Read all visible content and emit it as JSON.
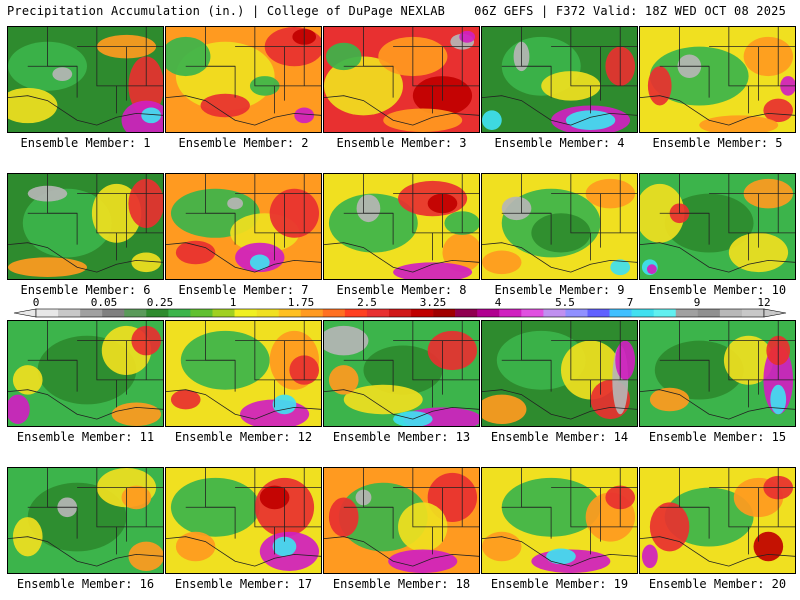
{
  "header": {
    "left": "Precipitation Accumulation (in.) | College of DuPage NEXLAB",
    "right": "06Z GEFS | F372 Valid: 18Z WED OCT 08 2025"
  },
  "members": [
    {
      "label": "Ensemble Member: 1",
      "base": "#2e8b2e",
      "blobs": [
        [
          "#3cb44b",
          40,
          40,
          40,
          25
        ],
        [
          "#b5b5b5",
          55,
          48,
          10,
          7
        ],
        [
          "#f0e020",
          20,
          80,
          30,
          18
        ],
        [
          "#e83030",
          140,
          60,
          18,
          30
        ],
        [
          "#d020c0",
          140,
          95,
          25,
          20
        ],
        [
          "#40e0f0",
          145,
          90,
          10,
          8
        ],
        [
          "#ff9a20",
          120,
          20,
          30,
          12
        ]
      ]
    },
    {
      "label": "Ensemble Member: 2",
      "base": "#ff9a20",
      "blobs": [
        [
          "#f0e020",
          60,
          50,
          50,
          35
        ],
        [
          "#e83030",
          130,
          20,
          30,
          20
        ],
        [
          "#3cb44b",
          20,
          30,
          25,
          20
        ],
        [
          "#e83030",
          60,
          80,
          25,
          12
        ],
        [
          "#d020c0",
          140,
          90,
          10,
          8
        ],
        [
          "#3cb44b",
          100,
          60,
          15,
          10
        ],
        [
          "#c00000",
          140,
          10,
          12,
          8
        ]
      ]
    },
    {
      "label": "Ensemble Member: 3",
      "base": "#e83030",
      "blobs": [
        [
          "#f0e020",
          40,
          60,
          40,
          30
        ],
        [
          "#ff9a20",
          90,
          30,
          35,
          20
        ],
        [
          "#3cb44b",
          20,
          30,
          18,
          14
        ],
        [
          "#c00000",
          120,
          70,
          30,
          20
        ],
        [
          "#b5b5b5",
          140,
          15,
          12,
          8
        ],
        [
          "#d020c0",
          145,
          10,
          8,
          6
        ],
        [
          "#ff9a20",
          100,
          95,
          40,
          12
        ]
      ]
    },
    {
      "label": "Ensemble Member: 4",
      "base": "#2e8b2e",
      "blobs": [
        [
          "#3cb44b",
          60,
          40,
          40,
          30
        ],
        [
          "#b5b5b5",
          40,
          30,
          8,
          15
        ],
        [
          "#f0e020",
          90,
          60,
          30,
          15
        ],
        [
          "#d020c0",
          110,
          95,
          40,
          15
        ],
        [
          "#40e0f0",
          110,
          95,
          25,
          10
        ],
        [
          "#e83030",
          140,
          40,
          15,
          20
        ],
        [
          "#40e0f0",
          10,
          95,
          10,
          10
        ]
      ]
    },
    {
      "label": "Ensemble Member: 5",
      "base": "#f0e020",
      "blobs": [
        [
          "#3cb44b",
          60,
          50,
          50,
          30
        ],
        [
          "#b5b5b5",
          50,
          40,
          12,
          12
        ],
        [
          "#ff9a20",
          130,
          30,
          25,
          20
        ],
        [
          "#e83030",
          20,
          60,
          12,
          20
        ],
        [
          "#e83030",
          140,
          85,
          15,
          12
        ],
        [
          "#d020c0",
          150,
          60,
          8,
          10
        ],
        [
          "#ff9a20",
          100,
          100,
          40,
          10
        ]
      ]
    },
    {
      "label": "Ensemble Member: 6",
      "base": "#2e8b2e",
      "blobs": [
        [
          "#3cb44b",
          60,
          50,
          45,
          35
        ],
        [
          "#b5b5b5",
          40,
          20,
          20,
          8
        ],
        [
          "#f0e020",
          110,
          40,
          25,
          30
        ],
        [
          "#e83030",
          140,
          30,
          18,
          25
        ],
        [
          "#ff9a20",
          40,
          95,
          40,
          10
        ],
        [
          "#f0e020",
          140,
          90,
          15,
          10
        ]
      ]
    },
    {
      "label": "Ensemble Member: 7",
      "base": "#ff9a20",
      "blobs": [
        [
          "#3cb44b",
          50,
          40,
          45,
          25
        ],
        [
          "#f0e020",
          100,
          60,
          35,
          20
        ],
        [
          "#e83030",
          130,
          40,
          25,
          25
        ],
        [
          "#d020c0",
          95,
          85,
          25,
          15
        ],
        [
          "#40e0f0",
          95,
          90,
          10,
          8
        ],
        [
          "#e83030",
          30,
          80,
          20,
          12
        ],
        [
          "#b5b5b5",
          70,
          30,
          8,
          6
        ]
      ]
    },
    {
      "label": "Ensemble Member: 8",
      "base": "#f0e020",
      "blobs": [
        [
          "#3cb44b",
          50,
          50,
          45,
          30
        ],
        [
          "#b5b5b5",
          45,
          35,
          12,
          14
        ],
        [
          "#e83030",
          110,
          25,
          35,
          18
        ],
        [
          "#c00000",
          120,
          30,
          15,
          10
        ],
        [
          "#ff9a20",
          140,
          80,
          20,
          20
        ],
        [
          "#d020c0",
          110,
          100,
          40,
          10
        ],
        [
          "#3cb44b",
          140,
          50,
          18,
          12
        ]
      ]
    },
    {
      "label": "Ensemble Member: 9",
      "base": "#f0e020",
      "blobs": [
        [
          "#3cb44b",
          70,
          50,
          50,
          35
        ],
        [
          "#b5b5b5",
          35,
          35,
          15,
          12
        ],
        [
          "#2e8b2e",
          80,
          60,
          30,
          20
        ],
        [
          "#ff9a20",
          130,
          20,
          25,
          15
        ],
        [
          "#ff9a20",
          20,
          90,
          20,
          12
        ],
        [
          "#40e0f0",
          140,
          95,
          10,
          8
        ]
      ]
    },
    {
      "label": "Ensemble Member: 10",
      "base": "#3cb44b",
      "blobs": [
        [
          "#2e8b2e",
          70,
          50,
          45,
          30
        ],
        [
          "#f0e020",
          20,
          40,
          25,
          30
        ],
        [
          "#e83030",
          40,
          40,
          10,
          10
        ],
        [
          "#ff9a20",
          130,
          20,
          25,
          15
        ],
        [
          "#f0e020",
          120,
          80,
          30,
          20
        ],
        [
          "#40e0f0",
          10,
          95,
          8,
          8
        ],
        [
          "#d020c0",
          12,
          97,
          5,
          5
        ]
      ]
    },
    {
      "label": "Ensemble Member: 11",
      "base": "#3cb44b",
      "blobs": [
        [
          "#2e8b2e",
          80,
          50,
          50,
          35
        ],
        [
          "#f0e020",
          120,
          30,
          25,
          25
        ],
        [
          "#e83030",
          140,
          20,
          15,
          15
        ],
        [
          "#d020c0",
          10,
          90,
          12,
          15
        ],
        [
          "#f0e020",
          20,
          60,
          15,
          15
        ],
        [
          "#ff9a20",
          130,
          95,
          25,
          12
        ]
      ]
    },
    {
      "label": "Ensemble Member: 12",
      "base": "#f0e020",
      "blobs": [
        [
          "#3cb44b",
          60,
          40,
          45,
          30
        ],
        [
          "#ff9a20",
          130,
          40,
          25,
          30
        ],
        [
          "#e83030",
          140,
          50,
          15,
          15
        ],
        [
          "#d020c0",
          110,
          95,
          35,
          15
        ],
        [
          "#40e0f0",
          120,
          85,
          12,
          10
        ],
        [
          "#e83030",
          20,
          80,
          15,
          10
        ]
      ]
    },
    {
      "label": "Ensemble Member: 13",
      "base": "#3cb44b",
      "blobs": [
        [
          "#b5b5b5",
          20,
          20,
          25,
          15
        ],
        [
          "#2e8b2e",
          80,
          50,
          40,
          25
        ],
        [
          "#f0e020",
          60,
          80,
          40,
          15
        ],
        [
          "#e83030",
          130,
          30,
          25,
          20
        ],
        [
          "#d020c0",
          120,
          100,
          40,
          12
        ],
        [
          "#40e0f0",
          90,
          100,
          20,
          8
        ],
        [
          "#ff9a20",
          20,
          60,
          15,
          15
        ]
      ]
    },
    {
      "label": "Ensemble Member: 14",
      "base": "#2e8b2e",
      "blobs": [
        [
          "#3cb44b",
          60,
          40,
          45,
          30
        ],
        [
          "#f0e020",
          110,
          50,
          30,
          30
        ],
        [
          "#e83030",
          130,
          80,
          20,
          20
        ],
        [
          "#b5b5b5",
          140,
          60,
          8,
          35
        ],
        [
          "#d020c0",
          145,
          40,
          10,
          20
        ],
        [
          "#ff9a20",
          20,
          90,
          25,
          15
        ]
      ]
    },
    {
      "label": "Ensemble Member: 15",
      "base": "#3cb44b",
      "blobs": [
        [
          "#2e8b2e",
          60,
          50,
          45,
          30
        ],
        [
          "#f0e020",
          110,
          40,
          25,
          25
        ],
        [
          "#d020c0",
          140,
          60,
          15,
          35
        ],
        [
          "#40e0f0",
          140,
          80,
          8,
          15
        ],
        [
          "#e83030",
          140,
          30,
          12,
          15
        ],
        [
          "#ff9a20",
          30,
          80,
          20,
          12
        ]
      ]
    },
    {
      "label": "Ensemble Member: 16",
      "base": "#3cb44b",
      "blobs": [
        [
          "#2e8b2e",
          70,
          50,
          50,
          35
        ],
        [
          "#b5b5b5",
          60,
          40,
          10,
          10
        ],
        [
          "#f0e020",
          120,
          20,
          30,
          20
        ],
        [
          "#ff9a20",
          130,
          30,
          15,
          12
        ],
        [
          "#f0e020",
          20,
          70,
          15,
          20
        ],
        [
          "#ff9a20",
          140,
          90,
          18,
          15
        ]
      ]
    },
    {
      "label": "Ensemble Member: 17",
      "base": "#f0e020",
      "blobs": [
        [
          "#3cb44b",
          50,
          40,
          45,
          30
        ],
        [
          "#e83030",
          120,
          40,
          30,
          30
        ],
        [
          "#c00000",
          110,
          30,
          15,
          12
        ],
        [
          "#d020c0",
          125,
          85,
          30,
          20
        ],
        [
          "#40e0f0",
          120,
          80,
          12,
          10
        ],
        [
          "#ff9a20",
          30,
          80,
          20,
          15
        ]
      ]
    },
    {
      "label": "Ensemble Member: 18",
      "base": "#ff9a20",
      "blobs": [
        [
          "#3cb44b",
          60,
          50,
          45,
          35
        ],
        [
          "#e83030",
          130,
          30,
          25,
          25
        ],
        [
          "#f0e020",
          100,
          60,
          25,
          25
        ],
        [
          "#d020c0",
          100,
          95,
          35,
          12
        ],
        [
          "#e83030",
          20,
          50,
          15,
          20
        ],
        [
          "#b5b5b5",
          40,
          30,
          8,
          8
        ]
      ]
    },
    {
      "label": "Ensemble Member: 19",
      "base": "#f0e020",
      "blobs": [
        [
          "#3cb44b",
          70,
          40,
          50,
          30
        ],
        [
          "#ff9a20",
          130,
          50,
          25,
          25
        ],
        [
          "#e83030",
          140,
          30,
          15,
          12
        ],
        [
          "#d020c0",
          90,
          95,
          40,
          12
        ],
        [
          "#40e0f0",
          80,
          90,
          15,
          8
        ],
        [
          "#ff9a20",
          20,
          80,
          20,
          15
        ]
      ]
    },
    {
      "label": "Ensemble Member: 20",
      "base": "#f0e020",
      "blobs": [
        [
          "#3cb44b",
          70,
          50,
          45,
          30
        ],
        [
          "#e83030",
          30,
          60,
          20,
          25
        ],
        [
          "#ff9a20",
          120,
          30,
          25,
          20
        ],
        [
          "#e83030",
          140,
          20,
          15,
          12
        ],
        [
          "#d020c0",
          10,
          90,
          8,
          12
        ],
        [
          "#c00000",
          130,
          80,
          15,
          15
        ]
      ]
    }
  ],
  "legend": {
    "labels": [
      "0",
      "0.05",
      "0.25",
      "1",
      "1.75",
      "2.5",
      "3.25",
      "4",
      "5.5",
      "7",
      "9",
      "12"
    ],
    "colors": [
      "#e8e8e8",
      "#c8c8c8",
      "#a0a0a0",
      "#808080",
      "#5a9a5a",
      "#2e8b2e",
      "#3cb44b",
      "#60c030",
      "#a0d020",
      "#f0f020",
      "#f0e020",
      "#ffc020",
      "#ff9a20",
      "#ff7020",
      "#ff4020",
      "#e83030",
      "#d01818",
      "#c00000",
      "#a00000",
      "#900050",
      "#b00090",
      "#d020c0",
      "#e050e0",
      "#c090f0",
      "#9090ff",
      "#6060ff",
      "#40c0ff",
      "#40e0f0",
      "#60f0f0",
      "#a0a0a0",
      "#909090",
      "#b8b8b8",
      "#c8c8c8"
    ]
  }
}
